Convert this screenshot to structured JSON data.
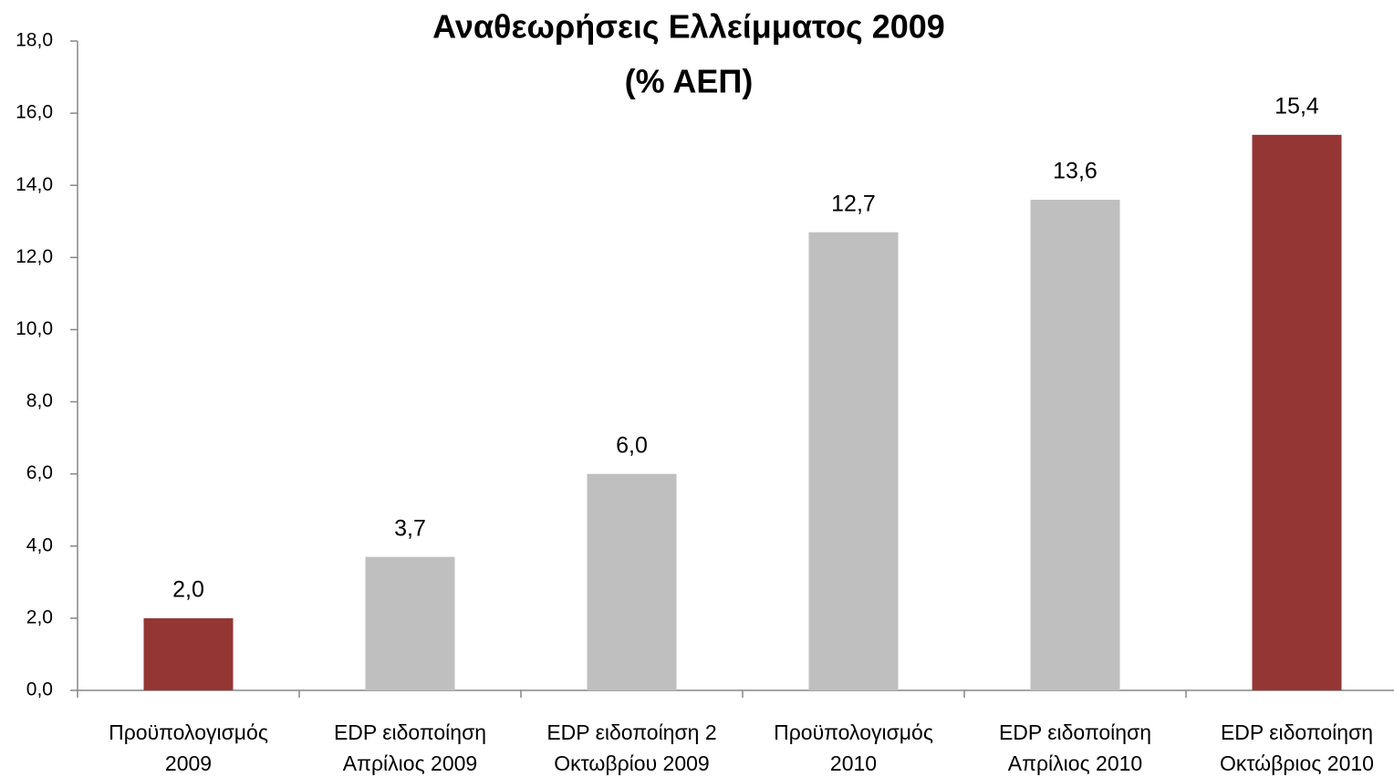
{
  "chart_data": {
    "type": "bar",
    "title": [
      "Αναθεωρήσεις Ελλείμματος 2009",
      "(% ΑΕΠ)"
    ],
    "categories": [
      [
        "Προϋπολογισμός",
        "2009"
      ],
      [
        "EDP ειδοποίηση",
        "Απρίλιος 2009"
      ],
      [
        "EDP ειδοποίηση 2",
        "Οκτωβρίου 2009"
      ],
      [
        "Προϋπολογισμός",
        "2010"
      ],
      [
        "EDP ειδοποίηση",
        "Απρίλιος 2010"
      ],
      [
        "EDP ειδοποίηση",
        "Οκτώβριος 2010"
      ]
    ],
    "values": [
      2.0,
      3.7,
      6.0,
      12.7,
      13.6,
      15.4
    ],
    "value_labels": [
      "2,0",
      "3,7",
      "6,0",
      "12,7",
      "13,6",
      "15,4"
    ],
    "colors": [
      "#943634",
      "#bfbfbf",
      "#bfbfbf",
      "#bfbfbf",
      "#bfbfbf",
      "#943634"
    ],
    "ylim": [
      0,
      18
    ],
    "yticks": [
      {
        "value": 0,
        "label": "0,0"
      },
      {
        "value": 2,
        "label": "2,0"
      },
      {
        "value": 4,
        "label": "4,0"
      },
      {
        "value": 6,
        "label": "6,0"
      },
      {
        "value": 8,
        "label": "8,0"
      },
      {
        "value": 10,
        "label": "10,0"
      },
      {
        "value": 12,
        "label": "12,0"
      },
      {
        "value": 14,
        "label": "14,0"
      },
      {
        "value": 16,
        "label": "16,0"
      },
      {
        "value": 18,
        "label": "18,0"
      }
    ],
    "grid": false
  }
}
